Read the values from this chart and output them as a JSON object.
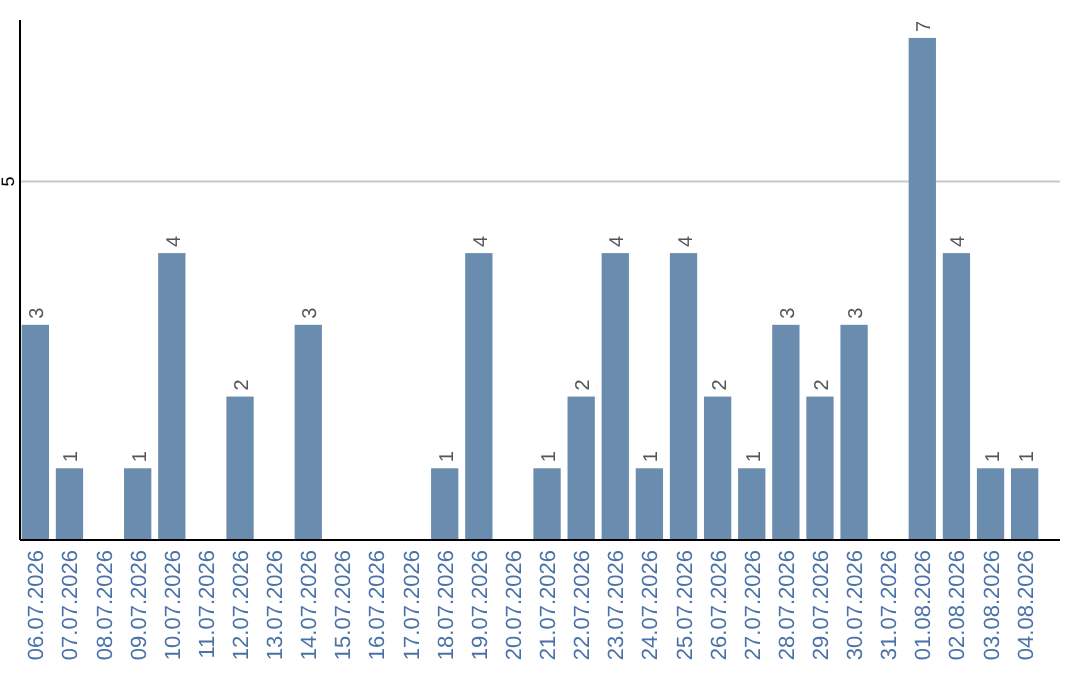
{
  "chart_data": {
    "type": "bar",
    "categories": [
      "06.07.2026",
      "07.07.2026",
      "08.07.2026",
      "09.07.2026",
      "10.07.2026",
      "11.07.2026",
      "12.07.2026",
      "13.07.2026",
      "14.07.2026",
      "15.07.2026",
      "16.07.2026",
      "17.07.2026",
      "18.07.2026",
      "19.07.2026",
      "20.07.2026",
      "21.07.2026",
      "22.07.2026",
      "23.07.2026",
      "24.07.2026",
      "25.07.2026",
      "26.07.2026",
      "27.07.2026",
      "28.07.2026",
      "29.07.2026",
      "30.07.2026",
      "31.07.2026",
      "01.08.2026",
      "02.08.2026",
      "03.08.2026",
      "04.08.2026"
    ],
    "values": [
      3,
      1,
      0,
      1,
      4,
      0,
      2,
      0,
      3,
      0,
      0,
      0,
      1,
      4,
      0,
      1,
      2,
      4,
      1,
      4,
      2,
      1,
      3,
      2,
      3,
      0,
      7,
      4,
      1,
      1
    ],
    "value_labels": [
      "3",
      "1",
      null,
      "1",
      "4",
      null,
      "2",
      null,
      "3",
      null,
      null,
      null,
      "1",
      "4",
      null,
      "1",
      "2",
      "4",
      "1",
      "4",
      "2",
      "1",
      "3",
      "2",
      "3",
      null,
      "7",
      "4",
      "1",
      "1"
    ],
    "color": "#6a8caf",
    "ylim": [
      0,
      7.25
    ],
    "yticks": [
      5
    ],
    "grid": "y"
  }
}
